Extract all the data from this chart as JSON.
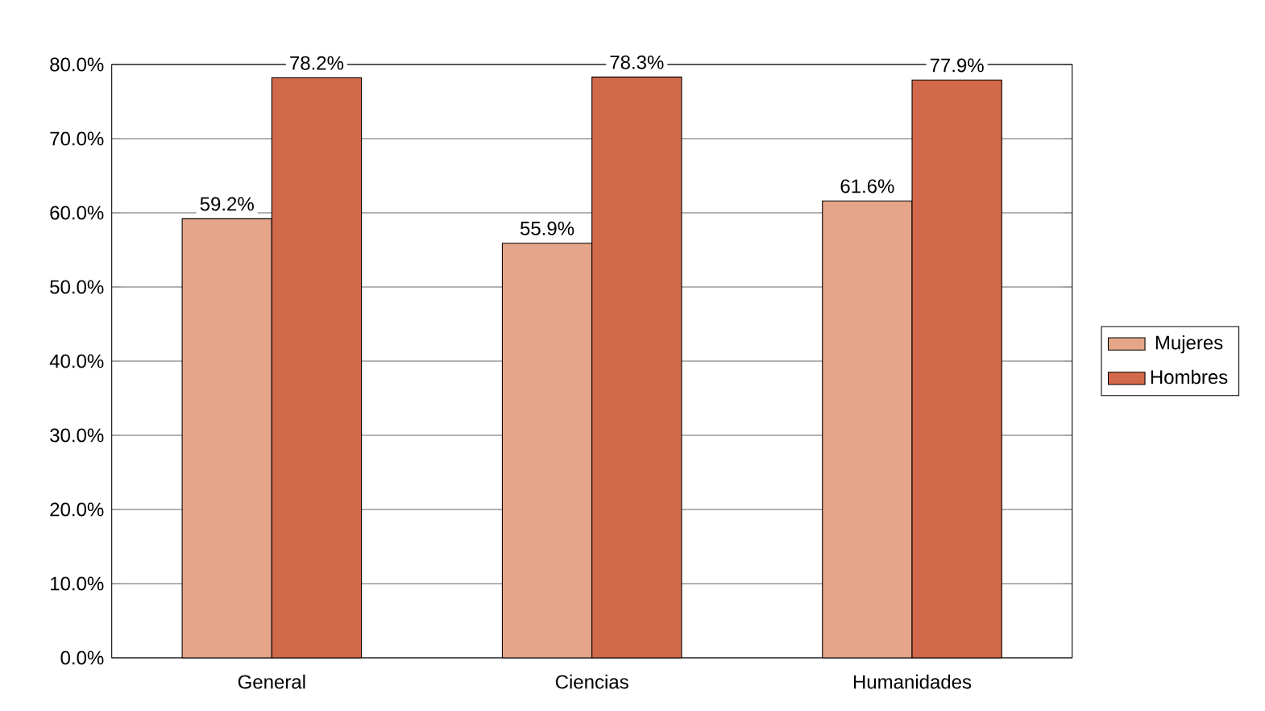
{
  "chart_data": {
    "type": "bar",
    "categories": [
      "General",
      "Ciencias",
      "Humanidades"
    ],
    "series": [
      {
        "name": "Mujeres",
        "color": "#e5a588",
        "values": [
          59.2,
          55.9,
          61.6
        ],
        "value_labels": [
          "59.2%",
          "55.9%",
          "61.6%"
        ]
      },
      {
        "name": "Hombres",
        "color": "#d2694a",
        "values": [
          78.2,
          78.3,
          77.9
        ],
        "value_labels": [
          "78.2%",
          "78.3%",
          "77.9%"
        ]
      }
    ],
    "ylim": [
      0,
      80
    ],
    "yticks": [
      {
        "value": 0,
        "label": "0.0%"
      },
      {
        "value": 10,
        "label": "10.0%"
      },
      {
        "value": 20,
        "label": "20.0%"
      },
      {
        "value": 30,
        "label": "30.0%"
      },
      {
        "value": 40,
        "label": "40.0%"
      },
      {
        "value": 50,
        "label": "50.0%"
      },
      {
        "value": 60,
        "label": "60.0%"
      },
      {
        "value": 70,
        "label": "70.0%"
      },
      {
        "value": 80,
        "label": "80.0%"
      }
    ],
    "grid": "y",
    "legend": "right"
  }
}
